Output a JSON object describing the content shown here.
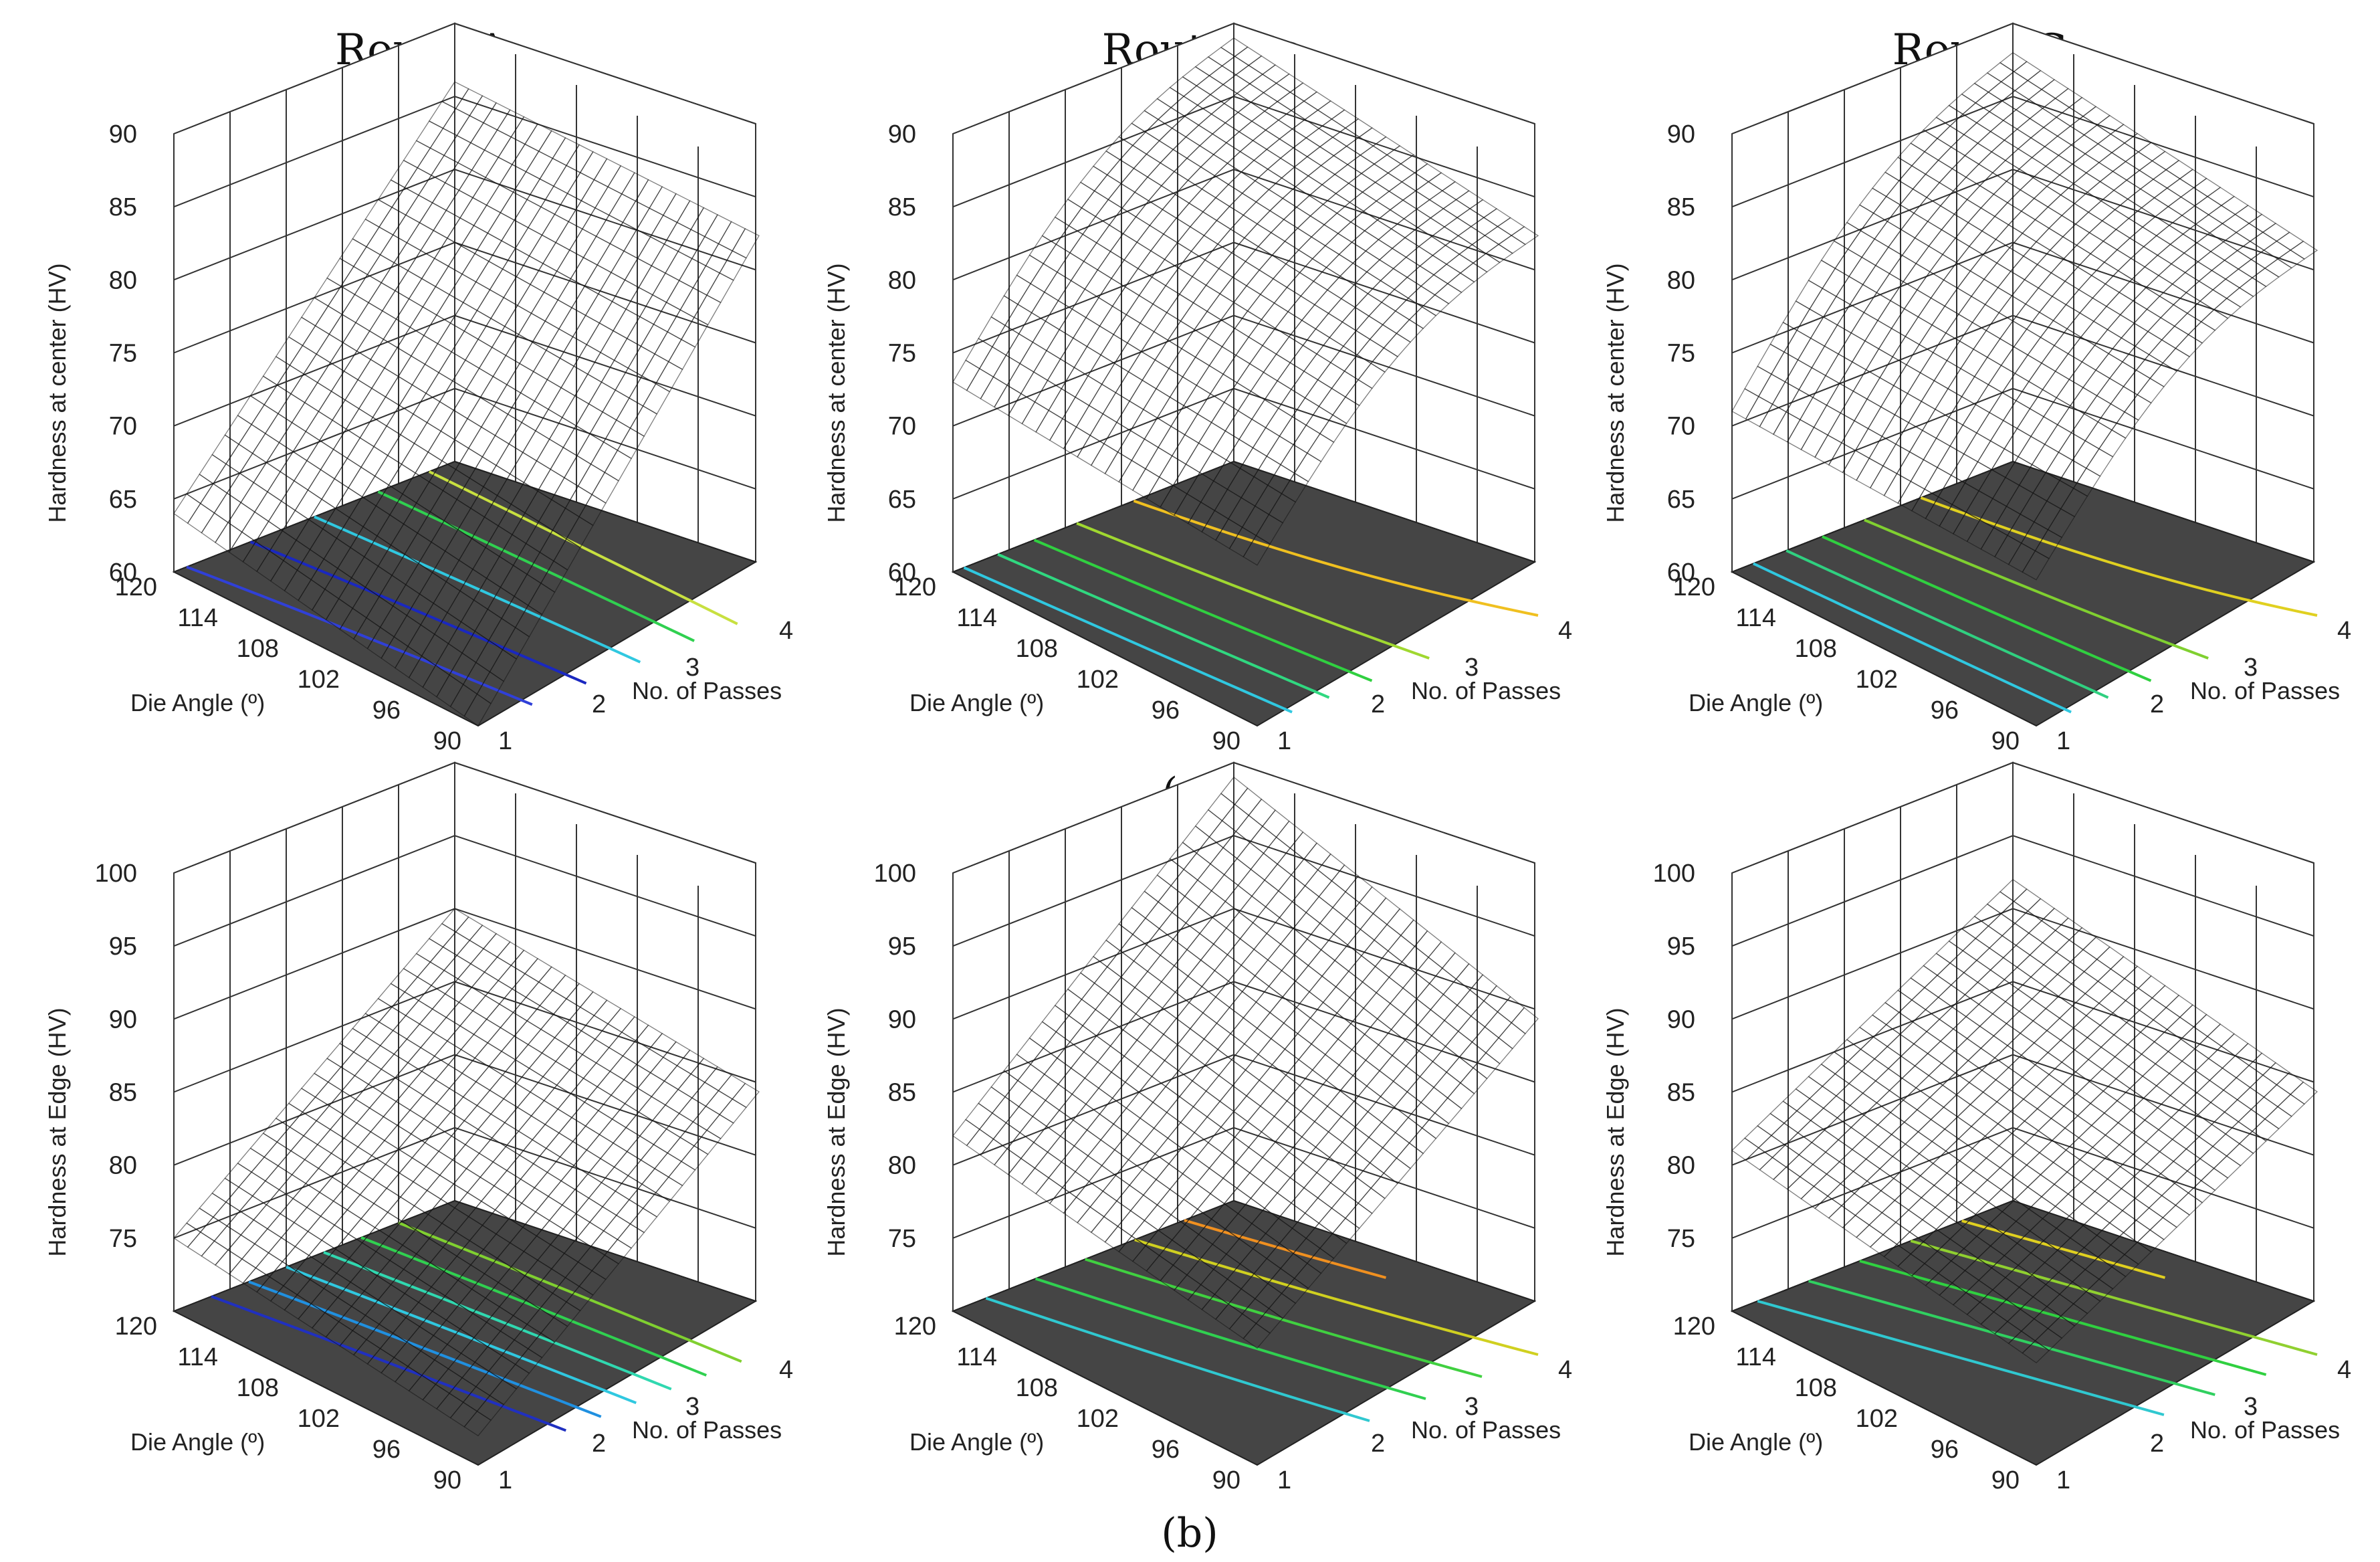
{
  "figure": {
    "column_titles": [
      "Route A",
      "Route Bc",
      "Route C"
    ],
    "row_labels": [
      "(a)",
      "(b)"
    ]
  },
  "chart_data": [
    {
      "type": "surface3d",
      "row": "a",
      "route": "Route A",
      "zlabel": "Hardness at center (HV)",
      "xlabel": "No. of Passes",
      "ylabel": "Die Angle (º)",
      "zlim": [
        60,
        90
      ],
      "zticks": [
        60,
        65,
        70,
        75,
        80,
        85,
        90
      ],
      "xticks": [
        1,
        2,
        3,
        4
      ],
      "yticks": [
        90,
        96,
        102,
        108,
        114,
        120
      ],
      "corners": {
        "passes1_angle120": 64,
        "passes1_angle90": 60,
        "passes4_angle90": 86,
        "passes4_angle120": 86
      },
      "contours": [
        {
          "level": 65,
          "color": "#3040d8"
        },
        {
          "level": 70,
          "color": "#1a28c0"
        },
        {
          "level": 75,
          "color": "#30c8e0"
        },
        {
          "level": 80,
          "color": "#30d050"
        },
        {
          "level": 84,
          "color": "#c8e040"
        }
      ]
    },
    {
      "type": "surface3d",
      "row": "a",
      "route": "Route Bc",
      "zlabel": "Hardness at center (HV)",
      "xlabel": "No. of Passes",
      "ylabel": "Die Angle (º)",
      "zlim": [
        60,
        90
      ],
      "zticks": [
        60,
        65,
        70,
        75,
        80,
        85,
        90
      ],
      "xticks": [
        1,
        2,
        3,
        4
      ],
      "yticks": [
        90,
        96,
        102,
        108,
        114,
        120
      ],
      "corners": {
        "passes1_angle120": 73,
        "passes1_angle90": 71,
        "passes4_angle90": 86,
        "passes4_angle120": 89
      },
      "contours": [
        {
          "level": 74,
          "color": "#30c8e0"
        },
        {
          "level": 77,
          "color": "#30d880"
        },
        {
          "level": 80,
          "color": "#30d040"
        },
        {
          "level": 83,
          "color": "#a0d830"
        },
        {
          "level": 86,
          "color": "#f0c020"
        }
      ]
    },
    {
      "type": "surface3d",
      "row": "a",
      "route": "Route C",
      "zlabel": "Hardness at center (HV)",
      "xlabel": "No. of Passes",
      "ylabel": "Die Angle (º)",
      "zlim": [
        60,
        90
      ],
      "zticks": [
        60,
        65,
        70,
        75,
        80,
        85,
        90
      ],
      "xticks": [
        1,
        2,
        3,
        4
      ],
      "yticks": [
        90,
        96,
        102,
        108,
        114,
        120
      ],
      "corners": {
        "passes1_angle120": 71,
        "passes1_angle90": 70,
        "passes4_angle90": 85,
        "passes4_angle120": 88
      },
      "contours": [
        {
          "level": 73,
          "color": "#30c8e0"
        },
        {
          "level": 76,
          "color": "#30d080"
        },
        {
          "level": 79,
          "color": "#30d040"
        },
        {
          "level": 82,
          "color": "#80d030"
        },
        {
          "level": 85,
          "color": "#e0d020"
        }
      ]
    },
    {
      "type": "surface3d",
      "row": "b",
      "route": "Route A",
      "zlabel": "Hardness at Edge (HV)",
      "xlabel": "No. of Passes",
      "ylabel": "Die Angle (º)",
      "zlim": [
        70,
        100
      ],
      "zticks": [
        75,
        80,
        85,
        90,
        95,
        100
      ],
      "xticks": [
        1,
        2,
        3,
        4
      ],
      "yticks": [
        90,
        96,
        102,
        108,
        114,
        120
      ],
      "corners": {
        "passes1_angle120": 75,
        "passes1_angle90": 72,
        "passes4_angle90": 88,
        "passes4_angle120": 90
      },
      "contours": [
        {
          "level": 77,
          "color": "#2030c0"
        },
        {
          "level": 79,
          "color": "#2090e0"
        },
        {
          "level": 81,
          "color": "#30c8e0"
        },
        {
          "level": 83,
          "color": "#30d8b0"
        },
        {
          "level": 85,
          "color": "#30d050"
        },
        {
          "level": 87,
          "color": "#80d030"
        }
      ]
    },
    {
      "type": "surface3d",
      "row": "b",
      "route": "Route Bc",
      "zlabel": "Hardness at Edge (HV)",
      "xlabel": "No. of Passes",
      "ylabel": "Die Angle (º)",
      "zlim": [
        70,
        100
      ],
      "zticks": [
        75,
        80,
        85,
        90,
        95,
        100
      ],
      "xticks": [
        1,
        2,
        3,
        4
      ],
      "yticks": [
        90,
        96,
        102,
        108,
        114,
        120
      ],
      "corners": {
        "passes1_angle120": 82,
        "passes1_angle90": 78,
        "passes4_angle90": 93,
        "passes4_angle120": 99
      },
      "contours": [
        {
          "level": 84,
          "color": "#30c8d0"
        },
        {
          "level": 87,
          "color": "#30d050"
        },
        {
          "level": 90,
          "color": "#40d040"
        },
        {
          "level": 93,
          "color": "#d0d020"
        },
        {
          "level": 96,
          "color": "#f09020"
        }
      ]
    },
    {
      "type": "surface3d",
      "row": "b",
      "route": "Route C",
      "zlabel": "Hardness at Edge (HV)",
      "xlabel": "No. of Passes",
      "ylabel": "Die Angle (º)",
      "zlim": [
        70,
        100
      ],
      "zticks": [
        75,
        80,
        85,
        90,
        95,
        100
      ],
      "xticks": [
        1,
        2,
        3,
        4
      ],
      "yticks": [
        90,
        96,
        102,
        108,
        114,
        120
      ],
      "corners": {
        "passes1_angle120": 81,
        "passes1_angle90": 77,
        "passes4_angle90": 88,
        "passes4_angle120": 92
      },
      "contours": [
        {
          "level": 82,
          "color": "#30c8d0"
        },
        {
          "level": 84,
          "color": "#30d060"
        },
        {
          "level": 86,
          "color": "#30d040"
        },
        {
          "level": 88,
          "color": "#90d030"
        },
        {
          "level": 90,
          "color": "#e0d020"
        }
      ]
    }
  ]
}
